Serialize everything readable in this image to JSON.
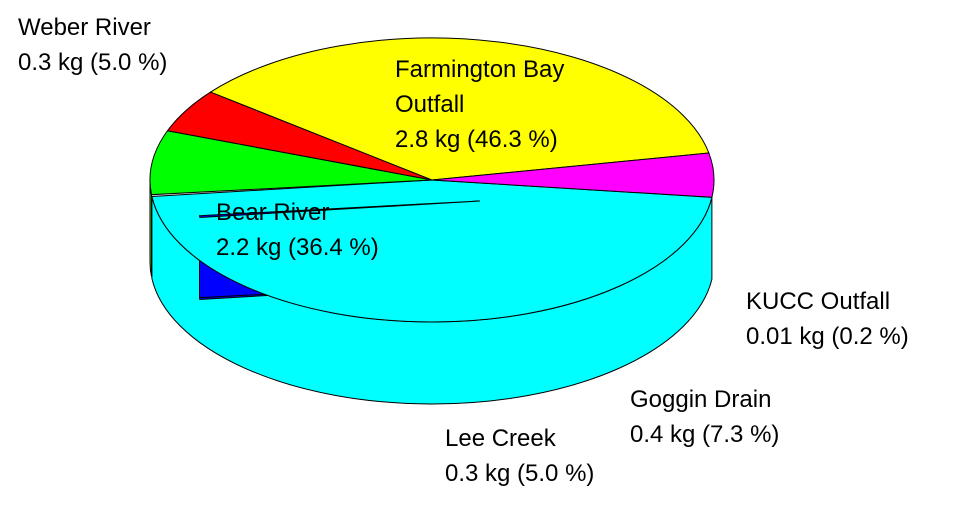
{
  "chart_data": {
    "type": "pie",
    "title": "",
    "unit": "kg",
    "style": "3d-exploded",
    "slices": [
      {
        "key": "farmington",
        "label": "Farmington Bay Outfall",
        "label_lines": [
          "Farmington Bay",
          "Outfall"
        ],
        "value": 2.8,
        "value_text": "2.8 kg (46.3 %)",
        "percent": 46.3,
        "color": "#00FFFF"
      },
      {
        "key": "kucc",
        "label": "KUCC Outfall",
        "label_lines": [
          "KUCC Outfall"
        ],
        "value": 0.01,
        "value_text": "0.01 kg (0.2 %)",
        "percent": 0.2,
        "color": "#0000FF",
        "exploded": true
      },
      {
        "key": "goggin",
        "label": "Goggin Drain",
        "label_lines": [
          "Goggin Drain"
        ],
        "value": 0.4,
        "value_text": "0.4 kg (7.3 %)",
        "percent": 7.3,
        "color": "#00FF00"
      },
      {
        "key": "lee",
        "label": "Lee Creek",
        "label_lines": [
          "Lee Creek"
        ],
        "value": 0.3,
        "value_text": "0.3 kg (5.0 %)",
        "percent": 5.0,
        "color": "#FF0000"
      },
      {
        "key": "bear",
        "label": "Bear River",
        "label_lines": [
          "Bear River"
        ],
        "value": 2.2,
        "value_text": "2.2 kg (36.4 %)",
        "percent": 36.4,
        "color": "#FFFF00"
      },
      {
        "key": "weber",
        "label": "Weber River",
        "label_lines": [
          "Weber River"
        ],
        "value": 0.3,
        "value_text": "0.3 kg (5.0 %)",
        "percent": 5.0,
        "color": "#FF00FF"
      }
    ]
  }
}
